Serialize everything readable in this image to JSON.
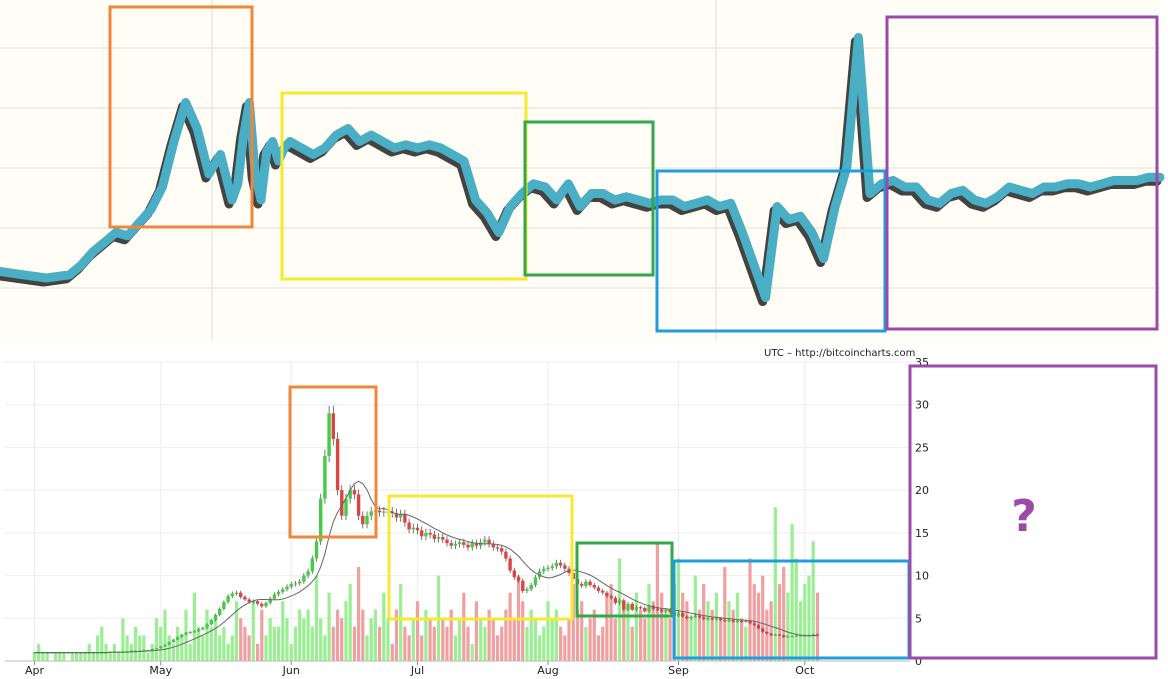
{
  "colors": {
    "top_background": "#fffdf5",
    "top_grid": "#e2e0d6",
    "top_line": "#4aaec4",
    "top_shadow": "#222222",
    "bottom_grid": "#eeeeee",
    "volume_up": "#9bee93",
    "volume_down": "#f0a0a0",
    "candle_up": "#44cc44",
    "candle_down": "#dd4444",
    "ma_line": "#666666",
    "box_orange": "#f0863a",
    "box_yellow": "#f7e830",
    "box_green": "#33a84a",
    "box_blue": "#1e9fdc",
    "box_purple": "#9b4aa8"
  },
  "credit": "UTC – http://bitcoincharts.com",
  "mystery_mark": "?",
  "chart_data": [
    {
      "type": "line",
      "note_for_series": "upper pattern chart, no axes printed",
      "ylim": [
        0,
        100
      ],
      "x": [
        0,
        4,
        8,
        12,
        14,
        16,
        18,
        20,
        22,
        24,
        26,
        28,
        30,
        32,
        34,
        36,
        38,
        40,
        41,
        42,
        43,
        44,
        45,
        46,
        47,
        48,
        49,
        50,
        52,
        54,
        56,
        58,
        60,
        62,
        64,
        66,
        68,
        70,
        72,
        74,
        76,
        78,
        80,
        82,
        84,
        86,
        88,
        90,
        92,
        94,
        96,
        98,
        100,
        102,
        104,
        106,
        108,
        110,
        112,
        114,
        116,
        118,
        120,
        122,
        124,
        126,
        128,
        130,
        132,
        134,
        136,
        138,
        140,
        142,
        144,
        146,
        148,
        150,
        152,
        154,
        156,
        158,
        160,
        162,
        164,
        166,
        168,
        170,
        172,
        174,
        176,
        178,
        180,
        182,
        184,
        186,
        188,
        190,
        192,
        194,
        196,
        198,
        200
      ],
      "y": [
        18,
        17,
        16,
        17,
        20,
        24,
        27,
        30,
        29,
        33,
        37,
        44,
        58,
        70,
        62,
        48,
        54,
        40,
        45,
        60,
        70,
        48,
        40,
        55,
        58,
        52,
        56,
        58,
        56,
        54,
        56,
        60,
        62,
        58,
        60,
        58,
        56,
        57,
        56,
        57,
        56,
        54,
        52,
        40,
        36,
        30,
        38,
        42,
        45,
        44,
        40,
        45,
        38,
        42,
        42,
        40,
        41,
        40,
        39,
        40,
        40,
        38,
        39,
        40,
        38,
        39,
        30,
        20,
        10,
        38,
        34,
        35,
        30,
        22,
        38,
        50,
        90,
        42,
        45,
        46,
        44,
        44,
        40,
        39,
        42,
        43,
        40,
        39,
        41,
        44,
        43,
        42,
        44,
        44,
        45,
        45,
        44,
        45,
        46,
        46,
        46,
        47,
        47
      ],
      "xlim": [
        0,
        200
      ],
      "title": "",
      "xlabel": "",
      "ylabel": ""
    },
    {
      "type": "bar",
      "ylim": [
        0,
        35
      ],
      "yticks": [
        0,
        5,
        10,
        15,
        20,
        25,
        30,
        35
      ],
      "xtick_labels": [
        "Apr",
        "May",
        "Jun",
        "Jul",
        "Aug",
        "Sep",
        "Oct"
      ],
      "xtick_days": [
        0,
        30,
        61,
        91,
        122,
        153,
        183
      ],
      "xlim": [
        -7,
        208
      ],
      "title": "",
      "xlabel": "",
      "ylabel": "",
      "series": [
        {
          "kind": "price_close",
          "values": [
            1.0,
            1.0,
            1.0,
            1.0,
            1.0,
            1.0,
            1.0,
            1.0,
            1.0,
            1.0,
            1.0,
            1.0,
            1.0,
            1.0,
            1.0,
            1.0,
            1.0,
            1.0,
            1.1,
            1.1,
            1.1,
            1.1,
            1.1,
            1.2,
            1.2,
            1.2,
            1.3,
            1.3,
            1.4,
            1.5,
            1.7,
            1.9,
            2.2,
            2.5,
            2.8,
            3.1,
            3.3,
            3.4,
            3.5,
            3.7,
            3.9,
            4.3,
            4.8,
            5.4,
            6.1,
            6.9,
            7.6,
            7.9,
            8.0,
            7.5,
            7.2,
            6.9,
            7.0,
            6.7,
            6.4,
            6.8,
            7.3,
            7.8,
            8.1,
            8.4,
            8.7,
            9.0,
            9.1,
            9.3,
            10.0,
            10.5,
            12.0,
            14.0,
            19.0,
            24.0,
            29.0,
            26.0,
            20.0,
            17.0,
            19.0,
            20.0,
            19.5,
            17.0,
            16.0,
            17.0,
            17.5,
            17.6,
            17.4,
            17.5,
            17.5,
            17.3,
            16.8,
            17.2,
            16.2,
            15.4,
            15.6,
            15.3,
            14.6,
            15.0,
            14.8,
            14.3,
            14.5,
            14.2,
            13.8,
            13.5,
            13.7,
            13.9,
            13.6,
            13.3,
            13.8,
            13.5,
            13.9,
            14.2,
            13.7,
            13.3,
            13.2,
            12.8,
            12.0,
            10.6,
            9.8,
            9.4,
            8.2,
            8.4,
            8.9,
            9.8,
            10.5,
            10.8,
            10.9,
            11.1,
            11.5,
            11.2,
            10.8,
            10.3,
            9.6,
            9.0,
            8.8,
            9.3,
            8.9,
            8.6,
            8.2,
            8.0,
            7.6,
            7.4,
            6.8,
            7.1,
            6.0,
            6.7,
            6.0,
            6.3,
            6.2,
            5.8,
            6.4,
            6.1,
            6.0,
            5.8,
            6.0,
            5.7,
            5.3,
            5.6,
            5.2,
            5.0,
            5.2,
            5.3,
            5.1,
            4.9,
            5.0,
            4.9,
            5.0,
            4.8,
            4.7,
            4.8,
            4.6,
            4.7,
            4.6,
            4.7,
            4.4,
            4.2,
            3.8,
            3.4,
            3.2,
            3.0,
            3.1,
            3.0,
            2.8,
            2.9,
            2.9,
            3.0,
            3.0,
            3.0,
            3.0,
            3.1,
            3.0
          ]
        },
        {
          "kind": "volume",
          "values": [
            1,
            2,
            1,
            1,
            0,
            1,
            1,
            1,
            0,
            1,
            1,
            1,
            1,
            2,
            1,
            3,
            4,
            2,
            1,
            2,
            1,
            5,
            3,
            2,
            4,
            3,
            3,
            1,
            2,
            5,
            4,
            6,
            3,
            2,
            4,
            3,
            6,
            2,
            8,
            4,
            3,
            6,
            4,
            5,
            3,
            4,
            2,
            3,
            7,
            5,
            4,
            3,
            7,
            2,
            6,
            3,
            5,
            4,
            4,
            7,
            5,
            2,
            4,
            6,
            5,
            6,
            4,
            10,
            5,
            3,
            8,
            4,
            6,
            5,
            7,
            9,
            4,
            11,
            6,
            3,
            5,
            6,
            4,
            8,
            5,
            2,
            6,
            9,
            4,
            3,
            5,
            7,
            3,
            6,
            5,
            4,
            10,
            5,
            4,
            6,
            3,
            5,
            8,
            4,
            2,
            7,
            5,
            4,
            6,
            5,
            3,
            4,
            6,
            8,
            5,
            10,
            7,
            4,
            6,
            5,
            3,
            4,
            7,
            5,
            6,
            4,
            3,
            5,
            9,
            6,
            7,
            4,
            5,
            6,
            3,
            4,
            8,
            9,
            5,
            12,
            7,
            6,
            4,
            8,
            6,
            5,
            9,
            7,
            14,
            8,
            6,
            5,
            9,
            12,
            8,
            7,
            5,
            10,
            6,
            9,
            7,
            6,
            8,
            5,
            11,
            7,
            6,
            8,
            5,
            4,
            12,
            9,
            8,
            10,
            6,
            7,
            18,
            9,
            11,
            8,
            16,
            12,
            7,
            9,
            10,
            14,
            8,
            6,
            12,
            10,
            9,
            8,
            11,
            7,
            9,
            8,
            10
          ]
        }
      ]
    }
  ]
}
